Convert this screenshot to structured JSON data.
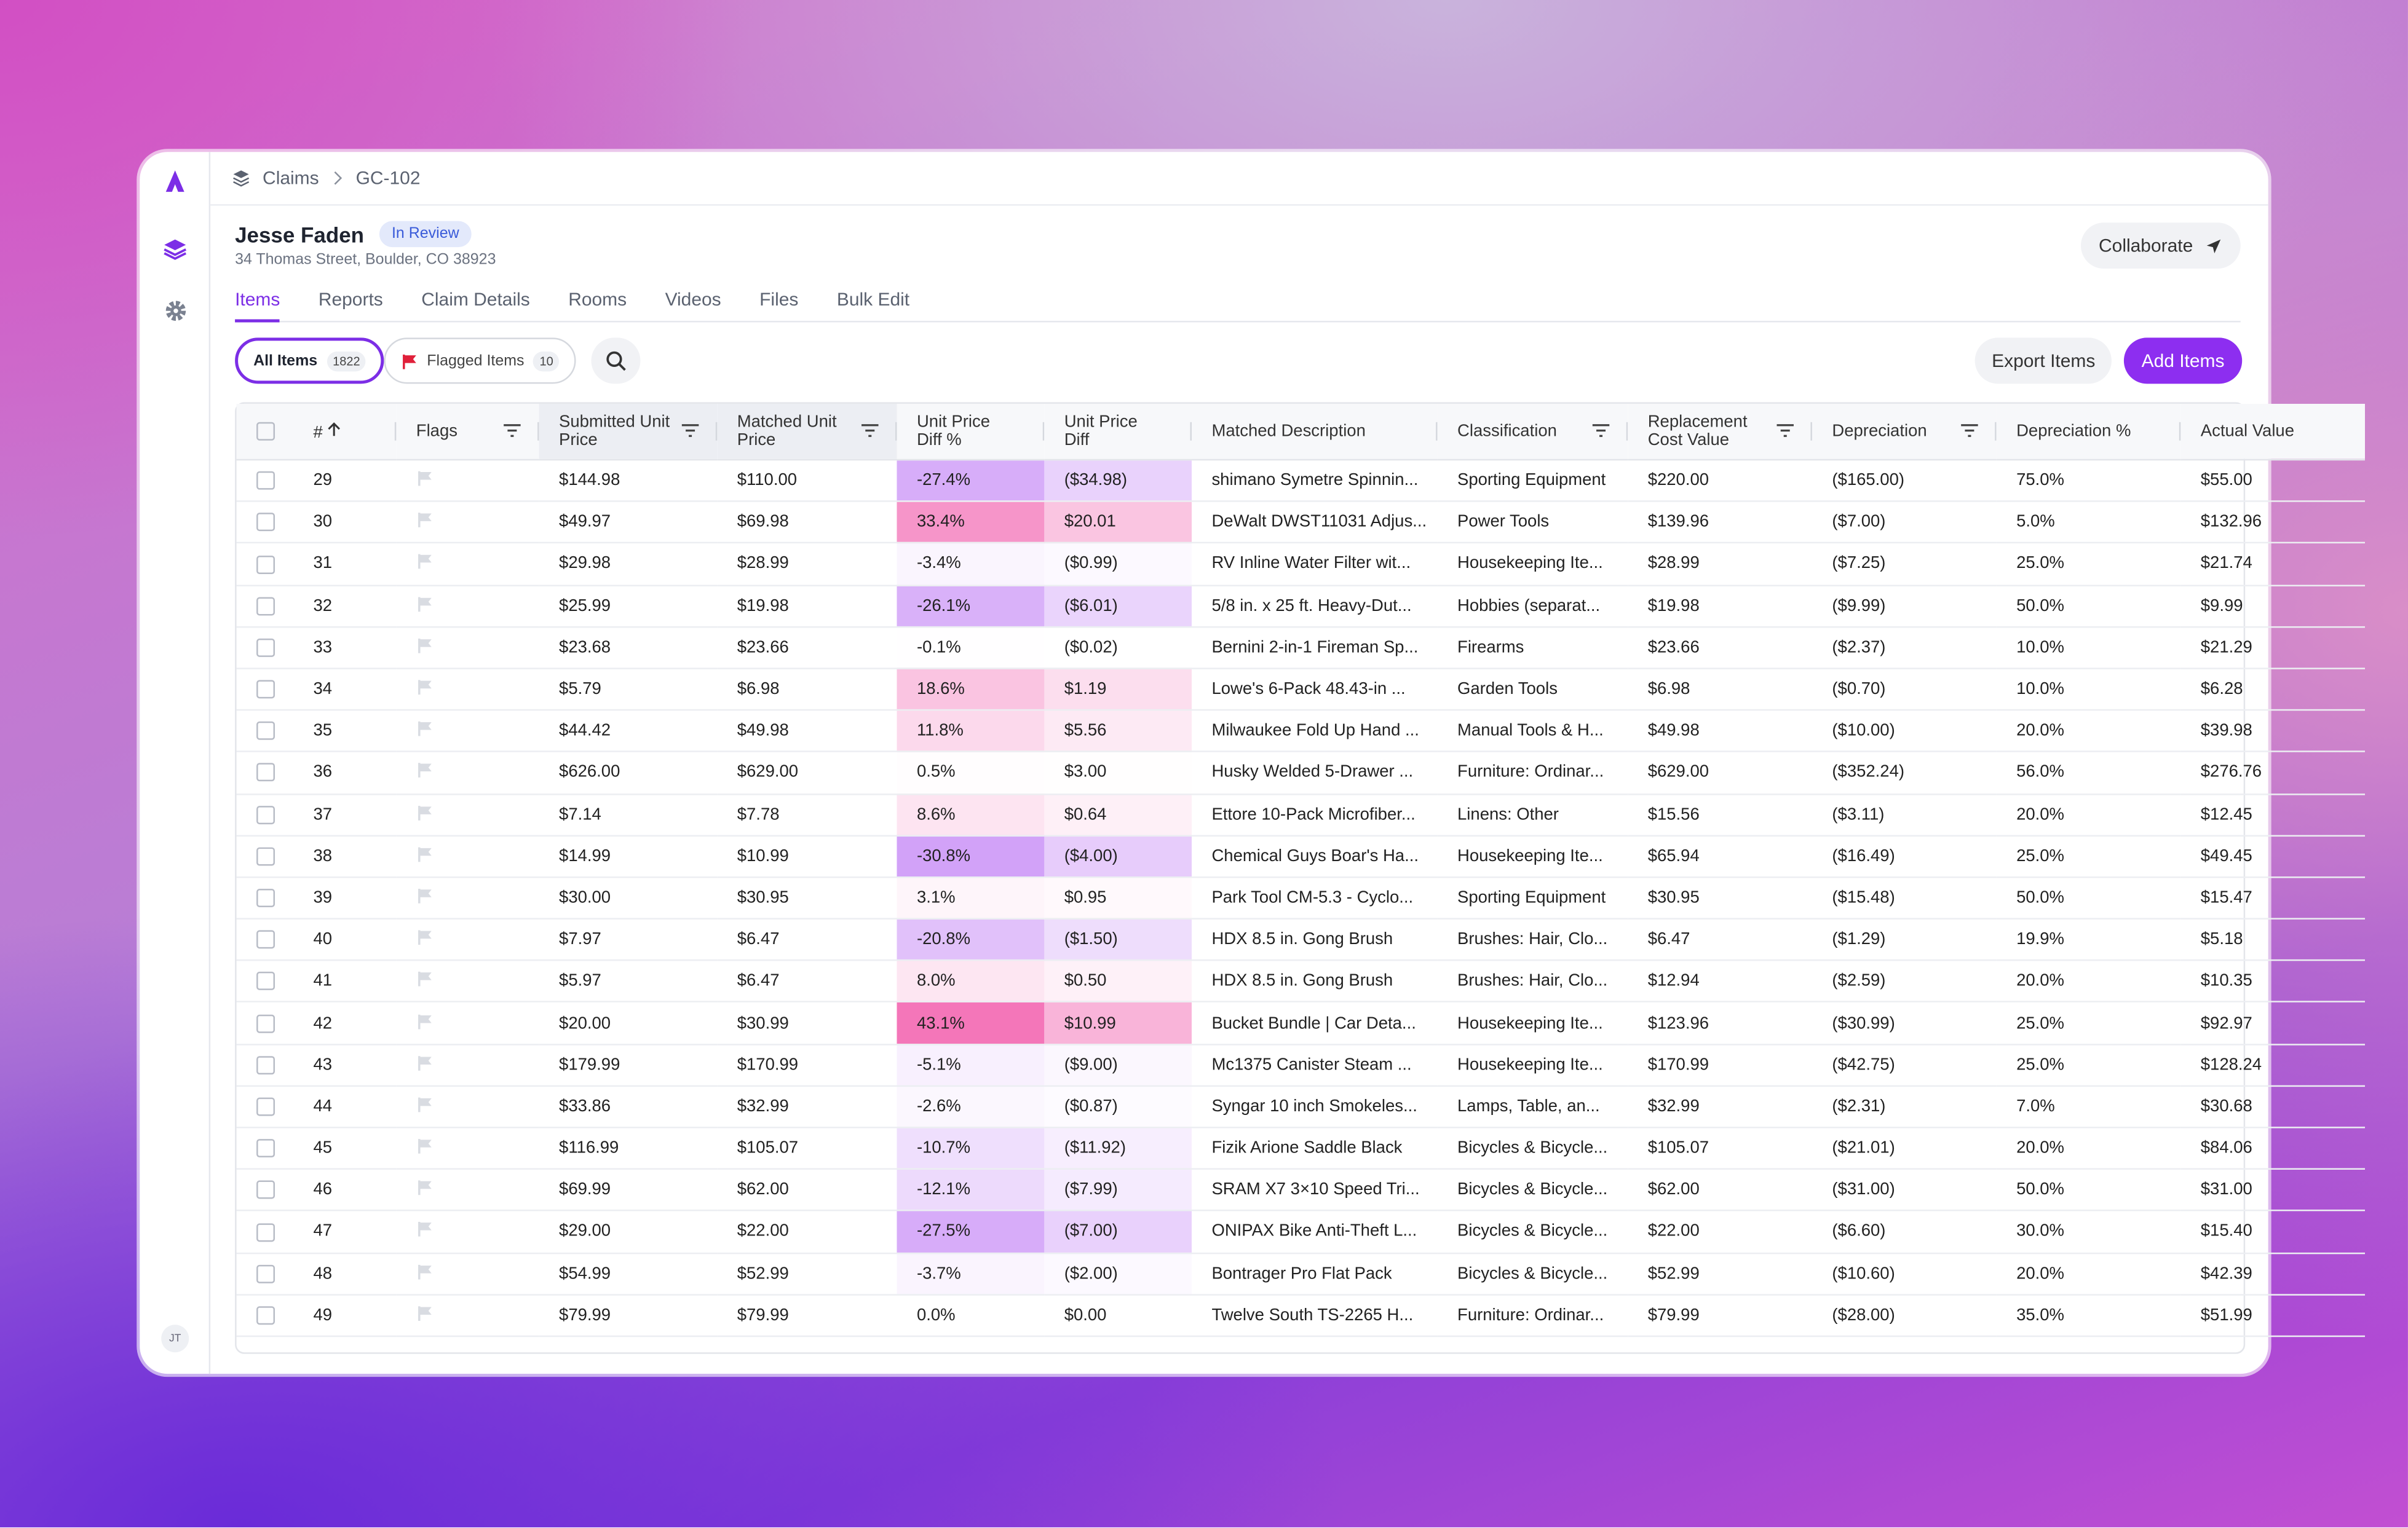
{
  "breadcrumb": [
    "Claims",
    "GC-102"
  ],
  "header": {
    "name": "Jesse Faden",
    "status": "In Review",
    "address": "34 Thomas Street, Boulder, CO 38923",
    "button": "Collaborate"
  },
  "tabs": [
    "Items",
    "Reports",
    "Claim Details",
    "Rooms",
    "Videos",
    "Files",
    "Bulk Edit"
  ],
  "filters": {
    "all": {
      "label": "All Items",
      "count": 1822
    },
    "flagged": {
      "label": "Flagged Items",
      "count": 10
    }
  },
  "actions": [
    "Export Items",
    "Add Items"
  ],
  "sidebar": {
    "avatar": "JT"
  },
  "table": {
    "columns": [
      "#",
      "Flags",
      "Submitted Unit Price",
      "Matched Unit Price",
      "Unit Price Diff %",
      "Unit Price Diff",
      "Matched Description",
      "Classification",
      "Replacement Cost Value",
      "Depreciation",
      "Depreciation %",
      "Actual Value"
    ],
    "rows": [
      [
        29,
        "$144.98",
        "$110.00",
        "-27.4%",
        "($34.98)",
        "shimano Symetre Spinnin...",
        "Sporting Equipment",
        "$220.00",
        "($165.00)",
        "75.0%",
        "$55.00"
      ],
      [
        30,
        "$49.97",
        "$69.98",
        "33.4%",
        "$20.01",
        "DeWalt DWST11031 Adjus...",
        "Power Tools",
        "$139.96",
        "($7.00)",
        "5.0%",
        "$132.96"
      ],
      [
        31,
        "$29.98",
        "$28.99",
        "-3.4%",
        "($0.99)",
        "RV Inline Water Filter wit...",
        "Housekeeping Ite...",
        "$28.99",
        "($7.25)",
        "25.0%",
        "$21.74"
      ],
      [
        32,
        "$25.99",
        "$19.98",
        "-26.1%",
        "($6.01)",
        "5/8 in. x 25 ft. Heavy-Dut...",
        "Hobbies (separat...",
        "$19.98",
        "($9.99)",
        "50.0%",
        "$9.99"
      ],
      [
        33,
        "$23.68",
        "$23.66",
        "-0.1%",
        "($0.02)",
        "Bernini 2-in-1 Fireman Sp...",
        "Firearms",
        "$23.66",
        "($2.37)",
        "10.0%",
        "$21.29"
      ],
      [
        34,
        "$5.79",
        "$6.98",
        "18.6%",
        "$1.19",
        "Lowe's 6-Pack 48.43-in ...",
        "Garden Tools",
        "$6.98",
        "($0.70)",
        "10.0%",
        "$6.28"
      ],
      [
        35,
        "$44.42",
        "$49.98",
        "11.8%",
        "$5.56",
        "Milwaukee Fold Up Hand ...",
        "Manual Tools & H...",
        "$49.98",
        "($10.00)",
        "20.0%",
        "$39.98"
      ],
      [
        36,
        "$626.00",
        "$629.00",
        "0.5%",
        "$3.00",
        "Husky Welded 5-Drawer ...",
        "Furniture: Ordinar...",
        "$629.00",
        "($352.24)",
        "56.0%",
        "$276.76"
      ],
      [
        37,
        "$7.14",
        "$7.78",
        "8.6%",
        "$0.64",
        "Ettore 10-Pack Microfiber...",
        "Linens: Other",
        "$15.56",
        "($3.11)",
        "20.0%",
        "$12.45"
      ],
      [
        38,
        "$14.99",
        "$10.99",
        "-30.8%",
        "($4.00)",
        "Chemical Guys Boar's Ha...",
        "Housekeeping Ite...",
        "$65.94",
        "($16.49)",
        "25.0%",
        "$49.45"
      ],
      [
        39,
        "$30.00",
        "$30.95",
        "3.1%",
        "$0.95",
        "Park Tool CM-5.3 - Cyclo...",
        "Sporting Equipment",
        "$30.95",
        "($15.48)",
        "50.0%",
        "$15.47"
      ],
      [
        40,
        "$7.97",
        "$6.47",
        "-20.8%",
        "($1.50)",
        "HDX 8.5 in. Gong Brush",
        "Brushes: Hair, Clo...",
        "$6.47",
        "($1.29)",
        "19.9%",
        "$5.18"
      ],
      [
        41,
        "$5.97",
        "$6.47",
        "8.0%",
        "$0.50",
        "HDX 8.5 in. Gong Brush",
        "Brushes: Hair, Clo...",
        "$12.94",
        "($2.59)",
        "20.0%",
        "$10.35"
      ],
      [
        42,
        "$20.00",
        "$30.99",
        "43.1%",
        "$10.99",
        "Bucket Bundle | Car Deta...",
        "Housekeeping Ite...",
        "$123.96",
        "($30.99)",
        "25.0%",
        "$92.97"
      ],
      [
        43,
        "$179.99",
        "$170.99",
        "-5.1%",
        "($9.00)",
        "Mc1375 Canister Steam ...",
        "Housekeeping Ite...",
        "$170.99",
        "($42.75)",
        "25.0%",
        "$128.24"
      ],
      [
        44,
        "$33.86",
        "$32.99",
        "-2.6%",
        "($0.87)",
        "Syngar 10 inch Smokeles...",
        "Lamps, Table, an...",
        "$32.99",
        "($2.31)",
        "7.0%",
        "$30.68"
      ],
      [
        45,
        "$116.99",
        "$105.07",
        "-10.7%",
        "($11.92)",
        "Fizik Arione Saddle Black",
        "Bicycles & Bicycle...",
        "$105.07",
        "($21.01)",
        "20.0%",
        "$84.06"
      ],
      [
        46,
        "$69.99",
        "$62.00",
        "-12.1%",
        "($7.99)",
        "SRAM X7 3×10 Speed Tri...",
        "Bicycles & Bicycle...",
        "$62.00",
        "($31.00)",
        "50.0%",
        "$31.00"
      ],
      [
        47,
        "$29.00",
        "$22.00",
        "-27.5%",
        "($7.00)",
        "ONIPAX Bike Anti-Theft L...",
        "Bicycles & Bicycle...",
        "$22.00",
        "($6.60)",
        "30.0%",
        "$15.40"
      ],
      [
        48,
        "$54.99",
        "$52.99",
        "-3.7%",
        "($2.00)",
        "Bontrager Pro Flat Pack",
        "Bicycles & Bicycle...",
        "$52.99",
        "($10.60)",
        "20.0%",
        "$42.39"
      ],
      [
        49,
        "$79.99",
        "$79.99",
        "0.0%",
        "$0.00",
        "Twelve South TS-2265 H...",
        "Furniture: Ordinar...",
        "$79.99",
        "($28.00)",
        "35.0%",
        "$51.99"
      ]
    ]
  }
}
